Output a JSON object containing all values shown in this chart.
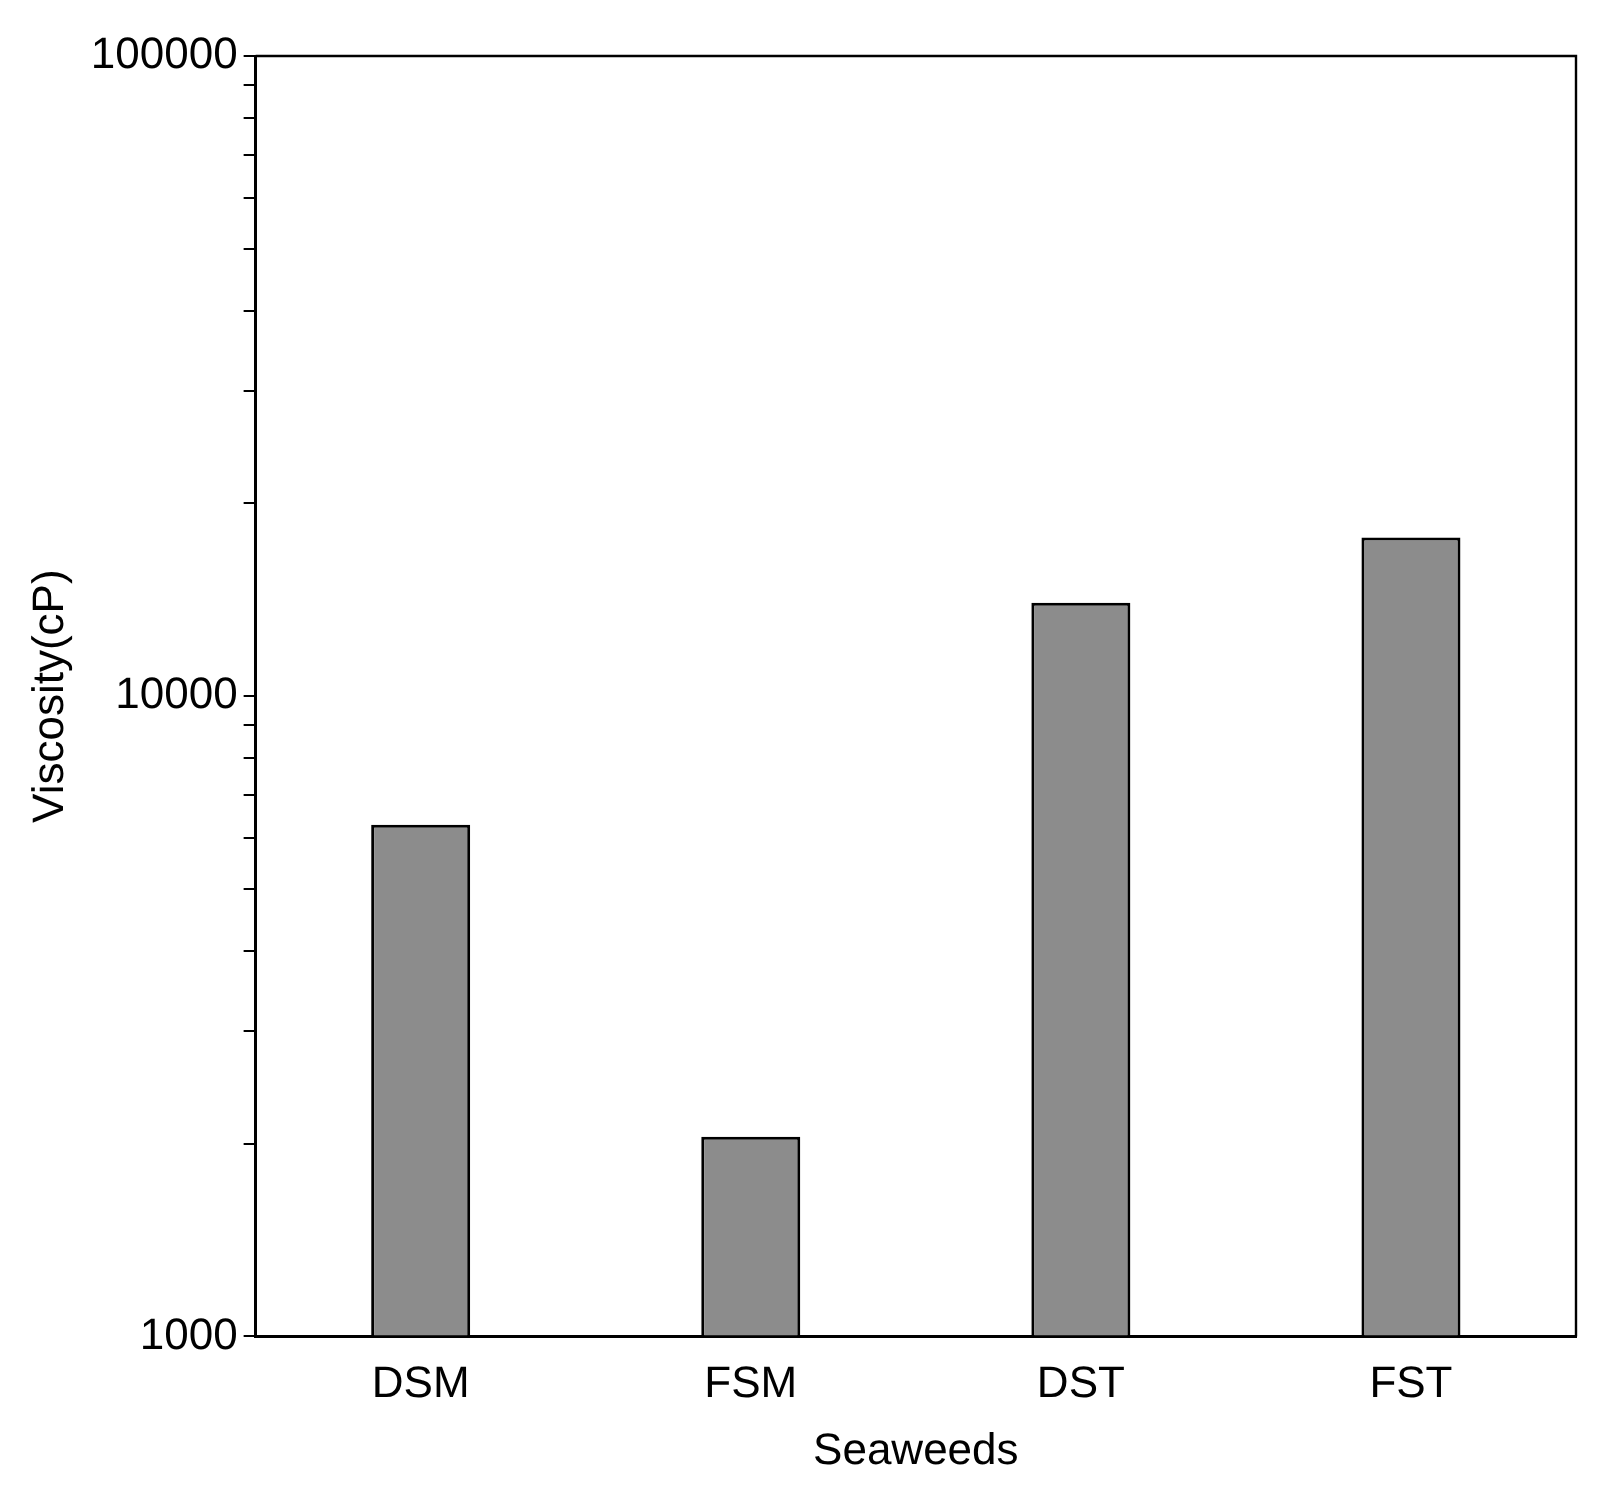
{
  "chart_data": {
    "type": "bar",
    "xlabel": "Seaweeds",
    "ylabel": "Viscosity(cP)",
    "categories": [
      "DSM",
      "FSM",
      "DST",
      "FST"
    ],
    "values": [
      6300,
      2050,
      14000,
      17700
    ],
    "color": "#8c8c8c",
    "log": true,
    "ylim": [
      1000,
      100000
    ],
    "yticks": [
      1000,
      {
        "value": 2000,
        "label": null
      },
      {
        "value": 3000,
        "label": null
      },
      {
        "value": 4000,
        "label": null
      },
      {
        "value": 5000,
        "label": null
      },
      {
        "value": 6000,
        "label": null
      },
      {
        "value": 7000,
        "label": null
      },
      {
        "value": 8000,
        "label": null
      },
      {
        "value": 9000,
        "label": null
      },
      10000,
      {
        "value": 20000,
        "label": null
      },
      {
        "value": 30000,
        "label": null
      },
      {
        "value": 40000,
        "label": null
      },
      {
        "value": 50000,
        "label": null
      },
      {
        "value": 60000,
        "label": null
      },
      {
        "value": 70000,
        "label": null
      },
      {
        "value": 80000,
        "label": null
      },
      {
        "value": 90000,
        "label": null
      },
      100000
    ],
    "grid": false,
    "legend": false
  }
}
